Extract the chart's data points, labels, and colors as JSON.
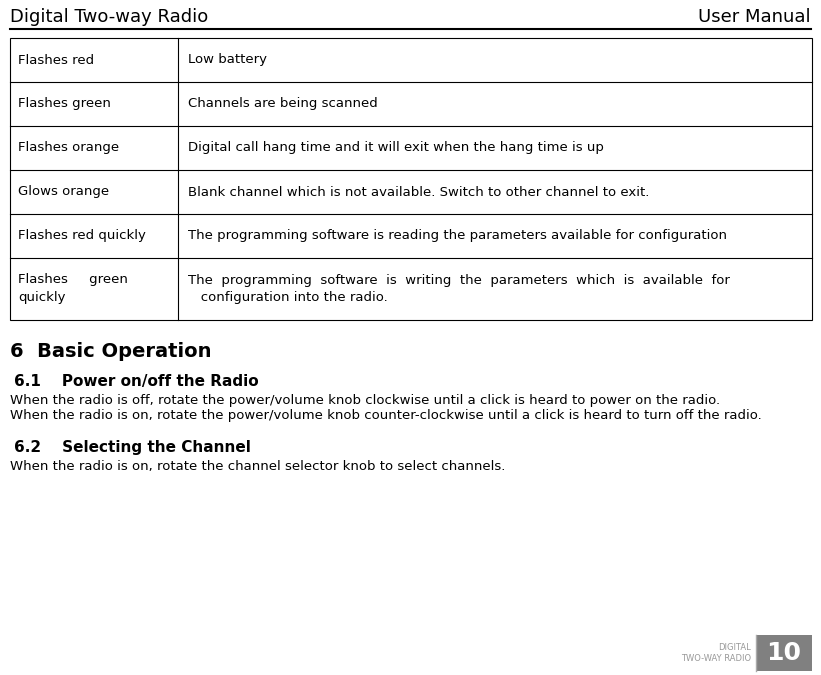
{
  "header_left": "Digital Two-way Radio",
  "header_right": "User Manual",
  "table_rows": [
    {
      "col1": "Flashes red",
      "col2": "Low battery"
    },
    {
      "col1": "Flashes green",
      "col2": "Channels are being scanned"
    },
    {
      "col1": "Flashes orange",
      "col2": "Digital call hang time and it will exit when the hang time is up"
    },
    {
      "col1": "Glows orange",
      "col2": "Blank channel which is not available. Switch to other channel to exit."
    },
    {
      "col1": "Flashes red quickly",
      "col2": "The programming software is reading the parameters available for configuration"
    },
    {
      "col1": "Flashes     green\nquickly",
      "col2": "The  programming  software  is  writing  the  parameters  which  is  available  for\n   configuration into the radio."
    }
  ],
  "section_heading": "6  Basic Operation",
  "subsections": [
    {
      "number": "6.1",
      "title": "Power on/off the Radio",
      "body_lines": [
        "When the radio is off, rotate the power/volume knob clockwise until a click is heard to power on the radio.",
        "When the radio is on, rotate the power/volume knob counter-clockwise until a click is heard to turn off the radio."
      ]
    },
    {
      "number": "6.2",
      "title": "Selecting the Channel",
      "body_lines": [
        "When the radio is on, rotate the channel selector knob to select channels."
      ]
    }
  ],
  "footer_label": "DIGITAL\nTWO-WAY RADIO",
  "footer_page": "10",
  "footer_bg": "#808080",
  "footer_text_color": "#ffffff",
  "footer_label_color": "#999999",
  "bg_color": "#ffffff",
  "table_border_color": "#000000",
  "section_color": "#000000",
  "subsection_color": "#000000",
  "body_color": "#000000"
}
